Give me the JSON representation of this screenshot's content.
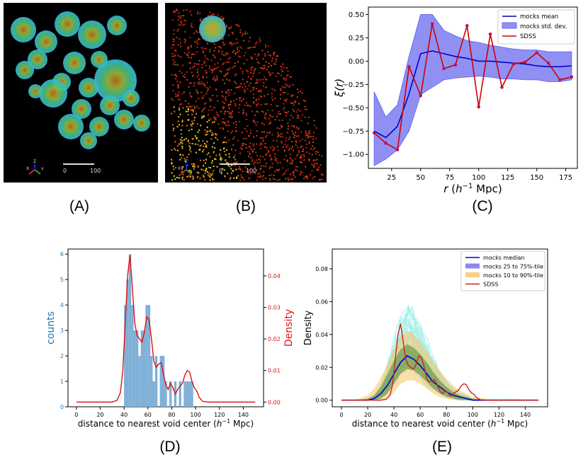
{
  "panel_labels": {
    "a": "(A)",
    "b": "(B)",
    "c": "(C)",
    "d": "(D)",
    "e": "(E)"
  },
  "colors": {
    "mocks": "#0000cc",
    "sdss": "#cc0000",
    "band": "#6b6bf0",
    "hist": "#7fb0d8",
    "teal": "#40e0d0",
    "green_band": "#6a9a4a",
    "orange_band": "#f5c465"
  },
  "render_a": {
    "scale_start": "0",
    "scale_end": "100",
    "axes": [
      "X",
      "Y",
      "Z"
    ]
  },
  "render_b": {
    "scale_start": "0",
    "scale_end": "100",
    "axes": [
      "X",
      "Y",
      "Z"
    ]
  },
  "chart_data": [
    {
      "id": "C",
      "type": "line",
      "xlabel": "r (h⁻¹ Mpc)",
      "ylabel": "ξ(r)",
      "xlim": [
        5,
        185
      ],
      "ylim": [
        -1.15,
        0.58
      ],
      "xticks": [
        25,
        50,
        75,
        100,
        125,
        150,
        175
      ],
      "yticks": [
        -1.0,
        -0.75,
        -0.5,
        -0.25,
        0.0,
        0.25,
        0.5
      ],
      "ytick_labels": [
        "−1.00",
        "−0.75",
        "−0.50",
        "−0.25",
        "0.00",
        "0.25",
        "0.50"
      ],
      "legend": [
        "mocks mean",
        "mocks std. dev.",
        "SDSS"
      ],
      "legend_position": "top-right",
      "x": [
        10,
        20,
        30,
        40,
        50,
        60,
        70,
        80,
        90,
        100,
        110,
        120,
        130,
        140,
        150,
        160,
        170,
        180
      ],
      "mocks_mean": [
        -0.75,
        -0.82,
        -0.7,
        -0.35,
        0.08,
        0.11,
        0.08,
        0.05,
        0.03,
        0.0,
        0.0,
        -0.01,
        -0.02,
        -0.03,
        -0.05,
        -0.06,
        -0.06,
        -0.05
      ],
      "std_upper": [
        -0.33,
        -0.6,
        -0.47,
        0.05,
        0.5,
        0.5,
        0.33,
        0.27,
        0.22,
        0.2,
        0.17,
        0.15,
        0.13,
        0.12,
        0.12,
        0.1,
        0.1,
        0.1
      ],
      "std_lower": [
        -1.12,
        -1.05,
        -0.95,
        -0.75,
        -0.36,
        -0.28,
        -0.2,
        -0.18,
        -0.17,
        -0.16,
        -0.17,
        -0.19,
        -0.19,
        -0.2,
        -0.2,
        -0.22,
        -0.22,
        -0.2
      ],
      "sdss": [
        -0.77,
        -0.88,
        -0.95,
        -0.06,
        -0.37,
        0.4,
        -0.08,
        -0.04,
        0.38,
        -0.49,
        0.29,
        -0.28,
        -0.03,
        -0.01,
        0.09,
        -0.02,
        -0.2,
        -0.17
      ]
    },
    {
      "id": "D",
      "type": "bar",
      "xlabel": "distance to nearest void center (h⁻¹ Mpc)",
      "ylabel": "counts",
      "ylabel_right": "Density",
      "xlim": [
        -7,
        157
      ],
      "ylim": [
        0,
        6.2
      ],
      "ylim_right": [
        -0.0015,
        0.0485
      ],
      "xticks": [
        0,
        20,
        40,
        60,
        80,
        100,
        120,
        140
      ],
      "yticks": [
        0,
        1,
        2,
        3,
        4,
        5,
        6
      ],
      "yticks_right": [
        0.0,
        0.01,
        0.02,
        0.03,
        0.04
      ],
      "ytick_right_labels": [
        "0.00",
        "0.01",
        "0.02",
        "0.03",
        "0.04"
      ],
      "bin_width": 2,
      "bins": [
        {
          "x": 40,
          "c": 4
        },
        {
          "x": 42,
          "c": 5
        },
        {
          "x": 44,
          "c": 6
        },
        {
          "x": 46,
          "c": 4
        },
        {
          "x": 48,
          "c": 3
        },
        {
          "x": 50,
          "c": 3
        },
        {
          "x": 52,
          "c": 2
        },
        {
          "x": 54,
          "c": 3
        },
        {
          "x": 56,
          "c": 3
        },
        {
          "x": 58,
          "c": 4
        },
        {
          "x": 60,
          "c": 4
        },
        {
          "x": 62,
          "c": 2
        },
        {
          "x": 64,
          "c": 1
        },
        {
          "x": 66,
          "c": 2
        },
        {
          "x": 70,
          "c": 2
        },
        {
          "x": 72,
          "c": 2
        },
        {
          "x": 74,
          "c": 1
        },
        {
          "x": 78,
          "c": 1
        },
        {
          "x": 82,
          "c": 1
        },
        {
          "x": 86,
          "c": 1
        },
        {
          "x": 90,
          "c": 1
        },
        {
          "x": 92,
          "c": 1
        },
        {
          "x": 94,
          "c": 1
        },
        {
          "x": 96,
          "c": 1
        }
      ],
      "density_x": [
        0,
        30,
        34,
        37,
        39,
        41,
        43,
        45,
        47,
        49,
        51,
        53,
        55,
        57,
        59,
        61,
        63,
        65,
        67,
        69,
        71,
        73,
        75,
        77,
        79,
        81,
        83,
        85,
        87,
        89,
        91,
        93,
        95,
        97,
        99,
        101,
        103,
        106,
        110,
        150
      ],
      "density_y": [
        0.0,
        0.0,
        0.0005,
        0.003,
        0.01,
        0.025,
        0.04,
        0.0465,
        0.036,
        0.025,
        0.021,
        0.02,
        0.019,
        0.022,
        0.027,
        0.026,
        0.02,
        0.013,
        0.011,
        0.012,
        0.0125,
        0.009,
        0.0055,
        0.004,
        0.006,
        0.0045,
        0.0025,
        0.004,
        0.005,
        0.006,
        0.0085,
        0.01,
        0.0095,
        0.0065,
        0.0045,
        0.0035,
        0.0015,
        0.0002,
        0.0,
        0.0
      ]
    },
    {
      "id": "E",
      "type": "area",
      "xlabel": "distance to nearest void center (h⁻¹ Mpc)",
      "ylabel": "Density",
      "xlim": [
        -7,
        157
      ],
      "ylim": [
        -0.004,
        0.092
      ],
      "xticks": [
        0,
        20,
        40,
        60,
        80,
        100,
        120,
        140
      ],
      "yticks": [
        0.0,
        0.02,
        0.04,
        0.06,
        0.08
      ],
      "ytick_labels": [
        "0.00",
        "0.02",
        "0.04",
        "0.06",
        "0.08"
      ],
      "legend": [
        "mocks median",
        "mocks 25 to 75%-tile",
        "mocks 10 to 90%-tile",
        "SDSS"
      ],
      "legend_position": "top-right",
      "x": [
        0,
        10,
        20,
        25,
        30,
        35,
        40,
        45,
        50,
        55,
        60,
        65,
        70,
        75,
        80,
        85,
        90,
        95,
        100,
        110,
        120,
        150
      ],
      "median": [
        0,
        0,
        0,
        0.001,
        0.004,
        0.009,
        0.016,
        0.023,
        0.027,
        0.025,
        0.021,
        0.016,
        0.011,
        0.008,
        0.005,
        0.003,
        0.002,
        0.001,
        0,
        0,
        0,
        0
      ],
      "q25": [
        0,
        0,
        0,
        0,
        0.001,
        0.004,
        0.01,
        0.016,
        0.019,
        0.018,
        0.015,
        0.011,
        0.007,
        0.004,
        0.002,
        0.001,
        0,
        0,
        0,
        0,
        0,
        0
      ],
      "q75": [
        0,
        0,
        0.001,
        0.003,
        0.008,
        0.016,
        0.024,
        0.031,
        0.034,
        0.032,
        0.028,
        0.023,
        0.017,
        0.012,
        0.008,
        0.005,
        0.003,
        0.002,
        0.001,
        0,
        0,
        0
      ],
      "q10": [
        0,
        0,
        0,
        0,
        0,
        0.001,
        0.005,
        0.01,
        0.012,
        0.012,
        0.01,
        0.007,
        0.004,
        0.002,
        0.001,
        0,
        0,
        0,
        0,
        0,
        0,
        0
      ],
      "q90": [
        0,
        0,
        0.003,
        0.007,
        0.014,
        0.022,
        0.031,
        0.039,
        0.042,
        0.04,
        0.036,
        0.03,
        0.024,
        0.018,
        0.013,
        0.009,
        0.006,
        0.004,
        0.002,
        0.001,
        0,
        0
      ],
      "sdss_x": [
        0,
        30,
        34,
        37,
        39,
        41,
        43,
        45,
        47,
        49,
        51,
        53,
        55,
        57,
        59,
        61,
        63,
        65,
        67,
        69,
        71,
        73,
        75,
        77,
        79,
        81,
        83,
        85,
        87,
        89,
        91,
        93,
        95,
        97,
        99,
        101,
        103,
        106,
        110,
        150
      ],
      "sdss_y": [
        0.0,
        0.0,
        0.0005,
        0.003,
        0.01,
        0.025,
        0.04,
        0.0465,
        0.036,
        0.025,
        0.021,
        0.02,
        0.019,
        0.022,
        0.027,
        0.026,
        0.02,
        0.013,
        0.011,
        0.012,
        0.0125,
        0.009,
        0.0055,
        0.004,
        0.006,
        0.0045,
        0.0025,
        0.004,
        0.005,
        0.006,
        0.0085,
        0.01,
        0.0095,
        0.0065,
        0.0045,
        0.0035,
        0.0015,
        0.0002,
        0.0,
        0.0
      ]
    }
  ]
}
